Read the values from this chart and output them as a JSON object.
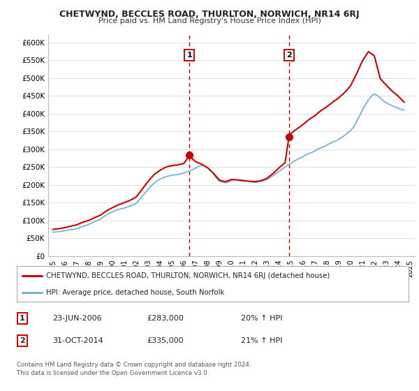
{
  "title": "CHETWYND, BECCLES ROAD, THURLTON, NORWICH, NR14 6RJ",
  "subtitle": "Price paid vs. HM Land Registry's House Price Index (HPI)",
  "ylim": [
    0,
    620000
  ],
  "yticks": [
    0,
    50000,
    100000,
    150000,
    200000,
    250000,
    300000,
    350000,
    400000,
    450000,
    500000,
    550000,
    600000
  ],
  "ytick_labels": [
    "£0",
    "£50K",
    "£100K",
    "£150K",
    "£200K",
    "£250K",
    "£300K",
    "£350K",
    "£400K",
    "£450K",
    "£500K",
    "£550K",
    "£600K"
  ],
  "xtick_years": [
    1995,
    1996,
    1997,
    1998,
    1999,
    2000,
    2001,
    2002,
    2003,
    2004,
    2005,
    2006,
    2007,
    2008,
    2009,
    2010,
    2011,
    2012,
    2013,
    2014,
    2015,
    2016,
    2017,
    2018,
    2019,
    2020,
    2021,
    2022,
    2023,
    2024,
    2025
  ],
  "vline1_x": 2006.47,
  "vline2_x": 2014.83,
  "marker1_x": 2006.47,
  "marker1_y": 283000,
  "marker2_x": 2014.83,
  "marker2_y": 335000,
  "sale_color": "#cc0000",
  "hpi_color": "#7eb0d4",
  "vline_color": "#cc0000",
  "background_color": "#ffffff",
  "grid_color": "#e0e0e0",
  "legend_label_sale": "CHETWYND, BECCLES ROAD, THURLTON, NORWICH, NR14 6RJ (detached house)",
  "legend_label_hpi": "HPI: Average price, detached house, South Norfolk",
  "table_rows": [
    [
      "1",
      "23-JUN-2006",
      "£283,000",
      "20% ↑ HPI"
    ],
    [
      "2",
      "31-OCT-2014",
      "£335,000",
      "21% ↑ HPI"
    ]
  ],
  "footer_text": "Contains HM Land Registry data © Crown copyright and database right 2024.\nThis data is licensed under the Open Government Licence v3.0.",
  "hpi_data_x": [
    1995.0,
    1995.25,
    1995.5,
    1995.75,
    1996.0,
    1996.25,
    1996.5,
    1996.75,
    1997.0,
    1997.25,
    1997.5,
    1997.75,
    1998.0,
    1998.25,
    1998.5,
    1998.75,
    1999.0,
    1999.25,
    1999.5,
    1999.75,
    2000.0,
    2000.25,
    2000.5,
    2000.75,
    2001.0,
    2001.25,
    2001.5,
    2001.75,
    2002.0,
    2002.25,
    2002.5,
    2002.75,
    2003.0,
    2003.25,
    2003.5,
    2003.75,
    2004.0,
    2004.25,
    2004.5,
    2004.75,
    2005.0,
    2005.25,
    2005.5,
    2005.75,
    2006.0,
    2006.25,
    2006.5,
    2006.75,
    2007.0,
    2007.25,
    2007.5,
    2007.75,
    2008.0,
    2008.25,
    2008.5,
    2008.75,
    2009.0,
    2009.25,
    2009.5,
    2009.75,
    2010.0,
    2010.25,
    2010.5,
    2010.75,
    2011.0,
    2011.25,
    2011.5,
    2011.75,
    2012.0,
    2012.25,
    2012.5,
    2012.75,
    2013.0,
    2013.25,
    2013.5,
    2013.75,
    2014.0,
    2014.25,
    2014.5,
    2014.75,
    2015.0,
    2015.25,
    2015.5,
    2015.75,
    2016.0,
    2016.25,
    2016.5,
    2016.75,
    2017.0,
    2017.25,
    2017.5,
    2017.75,
    2018.0,
    2018.25,
    2018.5,
    2018.75,
    2019.0,
    2019.25,
    2019.5,
    2019.75,
    2020.0,
    2020.25,
    2020.5,
    2020.75,
    2021.0,
    2021.25,
    2021.5,
    2021.75,
    2022.0,
    2022.25,
    2022.5,
    2022.75,
    2023.0,
    2023.25,
    2023.5,
    2023.75,
    2024.0,
    2024.25,
    2024.5
  ],
  "hpi_data_y": [
    67000,
    68000,
    69000,
    70000,
    71000,
    72500,
    74000,
    75000,
    77000,
    80000,
    83000,
    86000,
    89000,
    93000,
    97000,
    100000,
    104000,
    110000,
    116000,
    120000,
    124000,
    128000,
    131000,
    133000,
    135000,
    138000,
    141000,
    144000,
    148000,
    158000,
    168000,
    178000,
    188000,
    197000,
    205000,
    211000,
    216000,
    220000,
    223000,
    225000,
    227000,
    228000,
    229000,
    231000,
    233000,
    236000,
    239000,
    243000,
    247000,
    252000,
    255000,
    252000,
    247000,
    240000,
    230000,
    218000,
    210000,
    207000,
    206000,
    208000,
    212000,
    215000,
    213000,
    211000,
    210000,
    211000,
    210000,
    208000,
    207000,
    208000,
    210000,
    212000,
    215000,
    220000,
    226000,
    232000,
    238000,
    244000,
    250000,
    256000,
    261000,
    266000,
    271000,
    275000,
    279000,
    284000,
    288000,
    291000,
    295000,
    300000,
    304000,
    307000,
    311000,
    316000,
    320000,
    323000,
    328000,
    333000,
    339000,
    346000,
    352000,
    362000,
    376000,
    393000,
    410000,
    425000,
    438000,
    449000,
    455000,
    451000,
    444000,
    436000,
    430000,
    426000,
    422000,
    418000,
    415000,
    412000,
    410000
  ],
  "sale_data_x": [
    1995.0,
    1995.5,
    1996.0,
    1996.5,
    1997.0,
    1997.5,
    1998.0,
    1998.5,
    1999.0,
    1999.5,
    2000.0,
    2000.5,
    2001.0,
    2001.5,
    2002.0,
    2002.5,
    2003.0,
    2003.5,
    2004.0,
    2004.5,
    2005.0,
    2005.5,
    2006.0,
    2006.47,
    2006.75,
    2007.0,
    2007.5,
    2008.0,
    2008.5,
    2009.0,
    2009.5,
    2010.0,
    2010.5,
    2011.0,
    2011.5,
    2012.0,
    2012.5,
    2013.0,
    2013.5,
    2014.0,
    2014.5,
    2014.83,
    2015.0,
    2015.5,
    2016.0,
    2016.5,
    2017.0,
    2017.5,
    2018.0,
    2018.5,
    2019.0,
    2019.5,
    2020.0,
    2020.5,
    2021.0,
    2021.5,
    2022.0,
    2022.5,
    2023.0,
    2023.5,
    2024.0,
    2024.5
  ],
  "sale_data_y": [
    75000,
    77000,
    80000,
    84000,
    88000,
    95000,
    100000,
    108000,
    115000,
    127000,
    136000,
    144000,
    150000,
    157000,
    166000,
    188000,
    210000,
    229000,
    241000,
    250000,
    254000,
    256000,
    260000,
    283000,
    272000,
    265000,
    258000,
    248000,
    232000,
    213000,
    209000,
    215000,
    214000,
    212000,
    210000,
    209000,
    212000,
    219000,
    232000,
    248000,
    262000,
    335000,
    345000,
    357000,
    369000,
    383000,
    394000,
    408000,
    419000,
    432000,
    444000,
    459000,
    478000,
    511000,
    548000,
    574000,
    562000,
    498000,
    480000,
    463000,
    449000,
    432000
  ]
}
